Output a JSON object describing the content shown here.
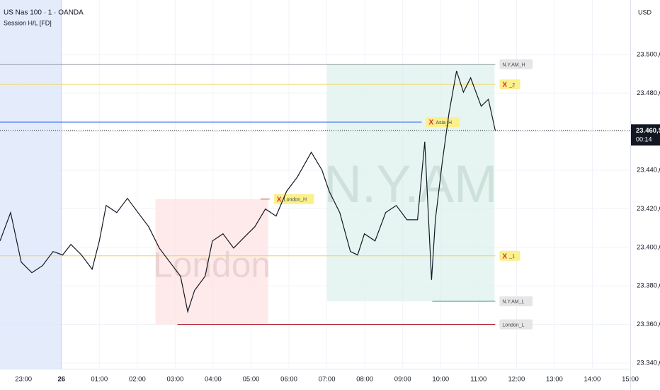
{
  "chart_data": {
    "type": "line",
    "title": "US Nas 100 · 1 · OANDA",
    "subtitle": "Session H/L [FD]",
    "currency": "USD",
    "last_price": {
      "value": 23460.5,
      "label": "23.460,5"
    },
    "countdown": "00:14",
    "xlim": [
      22.38,
      39
    ],
    "ylim": [
      23337,
      23528.3
    ],
    "xticks": [
      {
        "value": 23,
        "label": "23:00"
      },
      {
        "value": 24,
        "label": "26",
        "bold": true
      },
      {
        "value": 25,
        "label": "01:00"
      },
      {
        "value": 26,
        "label": "02:00"
      },
      {
        "value": 27,
        "label": "03:00"
      },
      {
        "value": 28,
        "label": "04:00"
      },
      {
        "value": 29,
        "label": "05:00"
      },
      {
        "value": 30,
        "label": "06:00"
      },
      {
        "value": 31,
        "label": "07:00"
      },
      {
        "value": 32,
        "label": "08:00"
      },
      {
        "value": 33,
        "label": "09:00"
      },
      {
        "value": 34,
        "label": "10:00"
      },
      {
        "value": 35,
        "label": "11:00"
      },
      {
        "value": 36,
        "label": "12:00"
      },
      {
        "value": 37,
        "label": "13:00"
      },
      {
        "value": 38,
        "label": "14:00"
      },
      {
        "value": 39,
        "label": "15:00"
      }
    ],
    "yticks": [
      {
        "value": 23340,
        "label": "23.340,0"
      },
      {
        "value": 23360,
        "label": "23.360,0"
      },
      {
        "value": 23380,
        "label": "23.380,0"
      },
      {
        "value": 23400,
        "label": "23.400,0"
      },
      {
        "value": 23420,
        "label": "23.420,0"
      },
      {
        "value": 23440,
        "label": "23.440,0"
      },
      {
        "value": 23460,
        "label": "23.460,0"
      },
      {
        "value": 23480,
        "label": "23.480,0"
      },
      {
        "value": 23500,
        "label": "23.500,0"
      }
    ],
    "sessions": [
      {
        "watermark": "",
        "start": 22.38,
        "end": 24.0,
        "high": null,
        "low": null,
        "color": "#dbe6fb"
      },
      {
        "watermark": "London",
        "start": 26.48,
        "end": 29.45,
        "high": 23425,
        "low": 23360,
        "color": "#fde3e3"
      },
      {
        "watermark": "N.Y.AM",
        "start": 31.0,
        "end": 35.42,
        "high": 23495,
        "low": 23372,
        "color": "#def2ec"
      }
    ],
    "levels": [
      {
        "label": "N.Y.AM_H",
        "marker": "",
        "value": 23495,
        "start": 22.38,
        "end": 35.44,
        "color": "#9598a1",
        "box": "#e6e6e6"
      },
      {
        "label": "_2",
        "marker": "X",
        "value": 23484.5,
        "start": 22.38,
        "end": 35.44,
        "color": "#f2d64b",
        "box": "#fbf08a"
      },
      {
        "label": "Asia_H",
        "marker": "X",
        "value": 23465,
        "start": 22.38,
        "end": 33.5,
        "color": "#2962ff",
        "box": "#fbf08a"
      },
      {
        "label": "London_H",
        "marker": "X",
        "value": 23425,
        "start": 29.25,
        "end": 29.49,
        "color": "#d05050",
        "box": "#fbf08a"
      },
      {
        "label": "_1",
        "marker": "X",
        "value": 23395.6,
        "start": 22.38,
        "end": 35.44,
        "color": "#f2d64b",
        "box": "#fbf08a"
      },
      {
        "label": "N.Y.AM_L",
        "marker": "",
        "value": 23372,
        "start": 33.78,
        "end": 35.44,
        "color": "#089981",
        "box": "#e6e6e6"
      },
      {
        "label": "London_L",
        "marker": "",
        "value": 23360,
        "start": 27.06,
        "end": 35.44,
        "color": "#b22833",
        "box": "#e6e6e6"
      }
    ],
    "series": [
      {
        "name": "US Nas 100",
        "color": "#131722",
        "x": [
          22.38,
          22.66,
          22.94,
          23.22,
          23.5,
          23.78,
          24.03,
          24.25,
          24.53,
          24.81,
          25.0,
          25.18,
          25.46,
          25.74,
          26.02,
          26.3,
          26.58,
          26.86,
          27.14,
          27.33,
          27.51,
          27.79,
          27.98,
          28.26,
          28.54,
          28.82,
          29.1,
          29.38,
          29.66,
          29.94,
          30.22,
          30.59,
          30.87,
          31.06,
          31.34,
          31.62,
          31.81,
          31.99,
          32.27,
          32.55,
          32.83,
          33.11,
          33.39,
          33.58,
          33.76,
          33.86,
          34.04,
          34.22,
          34.42,
          34.6,
          34.79,
          35.07,
          35.26,
          35.44
        ],
        "values": [
          23403.3,
          23418.0,
          23392.3,
          23386.8,
          23390.5,
          23397.8,
          23396.0,
          23401.5,
          23396.0,
          23388.6,
          23403.3,
          23421.7,
          23418.0,
          23425.4,
          23418.0,
          23410.7,
          23399.6,
          23392.3,
          23385.0,
          23366.6,
          23377.6,
          23385.0,
          23403.3,
          23407.0,
          23399.6,
          23405.2,
          23410.7,
          23419.9,
          23416.2,
          23429.1,
          23436.4,
          23449.3,
          23440.1,
          23429.1,
          23418.0,
          23397.8,
          23396.0,
          23407.0,
          23403.3,
          23418.0,
          23421.7,
          23414.3,
          23414.3,
          23454.8,
          23383.1,
          23414.3,
          23443.8,
          23469.5,
          23491.5,
          23480.5,
          23487.9,
          23473.2,
          23476.8,
          23460.5
        ]
      }
    ]
  }
}
